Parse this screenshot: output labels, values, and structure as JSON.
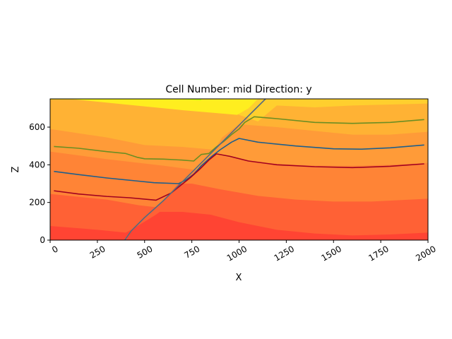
{
  "chart_data": {
    "type": "area",
    "title": "Cell Number: mid Direction: y",
    "xlabel": "X",
    "ylabel": "Z",
    "xlim": [
      0,
      2000
    ],
    "ylim": [
      0,
      750
    ],
    "x_ticks": [
      0,
      250,
      500,
      750,
      1000,
      1250,
      1500,
      1750,
      2000
    ],
    "y_ticks": [
      0,
      200,
      400,
      600
    ],
    "x_tick_rotation": 30,
    "grid": false,
    "legend": "none",
    "layer_fills": [
      {
        "color": "#ff4433",
        "boundary": [
          [
            0,
            0
          ],
          [
            2000,
            0
          ]
        ]
      },
      {
        "color": "#ff6135",
        "boundary": [
          [
            0,
            75
          ],
          [
            250,
            55
          ],
          [
            400,
            40
          ],
          [
            430,
            55
          ],
          [
            560,
            135
          ],
          [
            580,
            150
          ],
          [
            700,
            150
          ],
          [
            850,
            135
          ],
          [
            1000,
            95
          ],
          [
            1200,
            55
          ],
          [
            1400,
            35
          ],
          [
            1600,
            25
          ],
          [
            1800,
            30
          ],
          [
            2000,
            40
          ]
        ]
      },
      {
        "color": "#ff8436",
        "boundary": [
          [
            0,
            245
          ],
          [
            300,
            215
          ],
          [
            470,
            185
          ],
          [
            560,
            175
          ],
          [
            640,
            255
          ],
          [
            680,
            300
          ],
          [
            750,
            300
          ],
          [
            900,
            270
          ],
          [
            1100,
            235
          ],
          [
            1300,
            215
          ],
          [
            1500,
            205
          ],
          [
            1700,
            205
          ],
          [
            2000,
            220
          ]
        ]
      },
      {
        "color": "#ff9b38",
        "boundary": [
          [
            0,
            470
          ],
          [
            300,
            430
          ],
          [
            600,
            395
          ],
          [
            790,
            370
          ],
          [
            860,
            455
          ],
          [
            1000,
            430
          ],
          [
            1200,
            405
          ],
          [
            1400,
            395
          ],
          [
            1600,
            395
          ],
          [
            1800,
            400
          ],
          [
            2000,
            410
          ]
        ]
      },
      {
        "color": "#ffb234",
        "boundary": [
          [
            0,
            590
          ],
          [
            300,
            545
          ],
          [
            500,
            505
          ],
          [
            700,
            495
          ],
          [
            870,
            480
          ],
          [
            910,
            545
          ],
          [
            1000,
            615
          ],
          [
            1200,
            600
          ],
          [
            1400,
            580
          ],
          [
            1600,
            560
          ],
          [
            1800,
            560
          ],
          [
            2000,
            575
          ]
        ]
      },
      {
        "color": "#ffcf2e",
        "boundary": [
          [
            0,
            750
          ],
          [
            860,
            750
          ],
          [
            1000,
            665
          ],
          [
            1100,
            630
          ],
          [
            1200,
            715
          ],
          [
            1400,
            705
          ],
          [
            1600,
            715
          ],
          [
            1800,
            720
          ],
          [
            2000,
            725
          ],
          [
            2000,
            750
          ]
        ]
      },
      {
        "color": "#ffee1f",
        "boundary": [
          [
            100,
            750
          ],
          [
            400,
            720
          ],
          [
            700,
            690
          ],
          [
            990,
            665
          ],
          [
            1050,
            700
          ],
          [
            1100,
            750
          ]
        ]
      }
    ],
    "series": [
      {
        "color": "#c8ff00",
        "points": [
          [
            0,
            750
          ],
          [
            400,
            750
          ],
          [
            700,
            750
          ],
          [
            800,
            745
          ]
        ]
      },
      {
        "color": "#6b8e23",
        "points": [
          [
            20,
            497
          ],
          [
            150,
            488
          ],
          [
            300,
            470
          ],
          [
            400,
            460
          ],
          [
            460,
            440
          ],
          [
            500,
            432
          ],
          [
            600,
            430
          ],
          [
            700,
            425
          ],
          [
            760,
            420
          ],
          [
            800,
            455
          ],
          [
            840,
            460
          ],
          [
            880,
            495
          ],
          [
            920,
            525
          ],
          [
            960,
            560
          ],
          [
            1000,
            590
          ],
          [
            1030,
            625
          ],
          [
            1080,
            655
          ],
          [
            1200,
            645
          ],
          [
            1400,
            625
          ],
          [
            1600,
            620
          ],
          [
            1800,
            625
          ],
          [
            1980,
            640
          ]
        ]
      },
      {
        "color": "#1f5f8b",
        "points": [
          [
            20,
            365
          ],
          [
            150,
            348
          ],
          [
            300,
            330
          ],
          [
            450,
            315
          ],
          [
            550,
            305
          ],
          [
            680,
            300
          ],
          [
            720,
            320
          ],
          [
            760,
            350
          ],
          [
            800,
            395
          ],
          [
            850,
            440
          ],
          [
            900,
            480
          ],
          [
            960,
            520
          ],
          [
            1000,
            540
          ],
          [
            1100,
            520
          ],
          [
            1300,
            500
          ],
          [
            1500,
            485
          ],
          [
            1650,
            483
          ],
          [
            1800,
            490
          ],
          [
            1980,
            505
          ]
        ]
      },
      {
        "color": "#a00020",
        "points": [
          [
            20,
            262
          ],
          [
            150,
            245
          ],
          [
            300,
            232
          ],
          [
            420,
            225
          ],
          [
            560,
            212
          ],
          [
            640,
            250
          ],
          [
            690,
            290
          ],
          [
            740,
            330
          ],
          [
            790,
            375
          ],
          [
            840,
            425
          ],
          [
            880,
            458
          ],
          [
            950,
            445
          ],
          [
            1050,
            420
          ],
          [
            1200,
            400
          ],
          [
            1400,
            390
          ],
          [
            1600,
            385
          ],
          [
            1800,
            392
          ],
          [
            1980,
            405
          ]
        ]
      },
      {
        "color": "#556b7f",
        "points": [
          [
            395,
            0
          ],
          [
            430,
            50
          ],
          [
            500,
            120
          ],
          [
            600,
            210
          ],
          [
            700,
            310
          ],
          [
            800,
            410
          ],
          [
            900,
            510
          ],
          [
            1000,
            610
          ],
          [
            1080,
            690
          ],
          [
            1140,
            750
          ]
        ]
      }
    ]
  }
}
